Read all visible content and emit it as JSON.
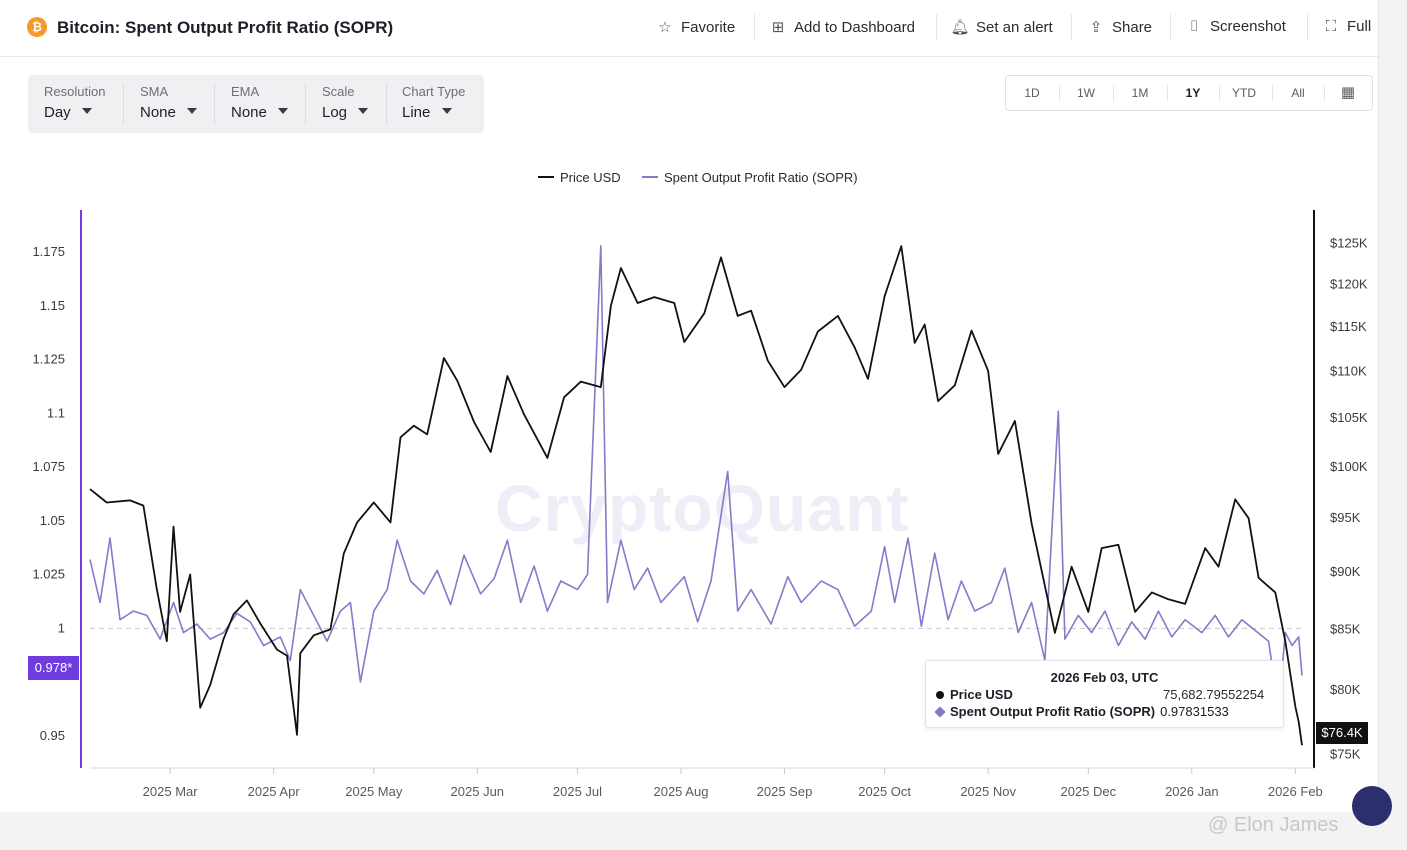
{
  "header": {
    "title": "Bitcoin: Spent Output Profit Ratio (SOPR)",
    "coin_symbol": "₿",
    "actions": [
      {
        "label": "Favorite",
        "icon": "star-icon"
      },
      {
        "label": "Add to Dashboard",
        "icon": "add-dashboard-icon"
      },
      {
        "label": "Set an alert",
        "icon": "bell-icon"
      },
      {
        "label": "Share",
        "icon": "share-icon"
      },
      {
        "label": "Screenshot",
        "icon": "camera-icon"
      },
      {
        "label": "Full",
        "icon": "fullscreen-icon"
      }
    ]
  },
  "controls": [
    {
      "label": "Resolution",
      "value": "Day"
    },
    {
      "label": "SMA",
      "value": "None"
    },
    {
      "label": "EMA",
      "value": "None"
    },
    {
      "label": "Scale",
      "value": "Log"
    },
    {
      "label": "Chart Type",
      "value": "Line"
    }
  ],
  "ranges": [
    "1D",
    "1W",
    "1M",
    "1Y",
    "YTD",
    "All"
  ],
  "active_range": "1Y",
  "colors": {
    "price": "#111111",
    "sopr": "#8a78c8",
    "accent": "#6f3ce0"
  },
  "watermark": "CryptoQuant",
  "credit": "@ Elon James",
  "tooltip": {
    "date": "2026 Feb 03, UTC",
    "rows": [
      {
        "name": "Price USD",
        "value": "75,682.79552254"
      },
      {
        "name": "Spent Output Profit Ratio (SOPR)",
        "value": "0.97831533"
      }
    ]
  },
  "tags": {
    "sopr": "0.978*",
    "price": "$76.4K"
  },
  "chart_data": {
    "type": "line",
    "legend_placement": "top-center",
    "grid": false,
    "reference_line": 1,
    "x_ticks": [
      "2025 Mar",
      "2025 Apr",
      "2025 May",
      "2025 Jun",
      "2025 Jul",
      "2025 Aug",
      "2025 Sep",
      "2025 Oct",
      "2025 Nov",
      "2025 Dec",
      "2026 Jan",
      "2026 Feb"
    ],
    "x_range": [
      "2025-02-05",
      "2026-02-03"
    ],
    "y_left": {
      "ticks": [
        "1.175",
        "1.15",
        "1.125",
        "1.1",
        "1.075",
        "1.05",
        "1.025",
        "1",
        "0.95"
      ],
      "range": [
        0.935,
        1.19
      ]
    },
    "y_right": {
      "scale": "log",
      "ticks": [
        "$125K",
        "$120K",
        "$115K",
        "$110K",
        "$105K",
        "$100K",
        "$95K",
        "$90K",
        "$85K",
        "$80K",
        "$75K"
      ],
      "range": [
        74000,
        128000
      ]
    },
    "series": [
      {
        "name": "Price USD",
        "axis": "right",
        "color": "#111111",
        "points": [
          [
            "2025-02-05",
            97800
          ],
          [
            "2025-02-10",
            96500
          ],
          [
            "2025-02-17",
            96700
          ],
          [
            "2025-02-21",
            96200
          ],
          [
            "2025-02-25",
            88500
          ],
          [
            "2025-02-28",
            84000
          ],
          [
            "2025-03-02",
            94200
          ],
          [
            "2025-03-04",
            86500
          ],
          [
            "2025-03-07",
            89800
          ],
          [
            "2025-03-10",
            78600
          ],
          [
            "2025-03-13",
            80400
          ],
          [
            "2025-03-17",
            84200
          ],
          [
            "2025-03-20",
            86300
          ],
          [
            "2025-03-24",
            87500
          ],
          [
            "2025-03-28",
            85500
          ],
          [
            "2025-04-02",
            83300
          ],
          [
            "2025-04-05",
            82800
          ],
          [
            "2025-04-08",
            76500
          ],
          [
            "2025-04-09",
            83000
          ],
          [
            "2025-04-13",
            84500
          ],
          [
            "2025-04-18",
            85000
          ],
          [
            "2025-04-22",
            91700
          ],
          [
            "2025-04-26",
            94600
          ],
          [
            "2025-05-01",
            96500
          ],
          [
            "2025-05-06",
            94600
          ],
          [
            "2025-05-09",
            103000
          ],
          [
            "2025-05-13",
            104200
          ],
          [
            "2025-05-17",
            103300
          ],
          [
            "2025-05-22",
            111500
          ],
          [
            "2025-05-26",
            109000
          ],
          [
            "2025-05-31",
            104600
          ],
          [
            "2025-06-05",
            101500
          ],
          [
            "2025-06-10",
            109500
          ],
          [
            "2025-06-15",
            105400
          ],
          [
            "2025-06-22",
            100900
          ],
          [
            "2025-06-27",
            107200
          ],
          [
            "2025-07-02",
            108900
          ],
          [
            "2025-07-08",
            108300
          ],
          [
            "2025-07-11",
            117500
          ],
          [
            "2025-07-14",
            122000
          ],
          [
            "2025-07-19",
            117800
          ],
          [
            "2025-07-24",
            118500
          ],
          [
            "2025-07-30",
            117800
          ],
          [
            "2025-08-02",
            113300
          ],
          [
            "2025-08-08",
            116600
          ],
          [
            "2025-08-13",
            123300
          ],
          [
            "2025-08-18",
            116300
          ],
          [
            "2025-08-22",
            116900
          ],
          [
            "2025-08-27",
            111200
          ],
          [
            "2025-09-01",
            108300
          ],
          [
            "2025-09-06",
            110200
          ],
          [
            "2025-09-11",
            114500
          ],
          [
            "2025-09-17",
            116300
          ],
          [
            "2025-09-22",
            112700
          ],
          [
            "2025-09-26",
            109200
          ],
          [
            "2025-10-01",
            118600
          ],
          [
            "2025-10-06",
            124700
          ],
          [
            "2025-10-10",
            113200
          ],
          [
            "2025-10-13",
            115300
          ],
          [
            "2025-10-17",
            106800
          ],
          [
            "2025-10-22",
            108500
          ],
          [
            "2025-10-27",
            114600
          ],
          [
            "2025-11-01",
            110100
          ],
          [
            "2025-11-04",
            101300
          ],
          [
            "2025-11-09",
            104700
          ],
          [
            "2025-11-14",
            94500
          ],
          [
            "2025-11-21",
            84700
          ],
          [
            "2025-11-26",
            90500
          ],
          [
            "2025-12-01",
            86500
          ],
          [
            "2025-12-05",
            92200
          ],
          [
            "2025-12-10",
            92500
          ],
          [
            "2025-12-15",
            86500
          ],
          [
            "2025-12-20",
            88200
          ],
          [
            "2025-12-25",
            87600
          ],
          [
            "2025-12-30",
            87200
          ],
          [
            "2026-01-05",
            92200
          ],
          [
            "2026-01-09",
            90500
          ],
          [
            "2026-01-14",
            96800
          ],
          [
            "2026-01-18",
            95000
          ],
          [
            "2026-01-21",
            89500
          ],
          [
            "2026-01-26",
            88200
          ],
          [
            "2026-01-29",
            84000
          ],
          [
            "2026-02-01",
            78700
          ],
          [
            "2026-02-02",
            77500
          ],
          [
            "2026-02-03",
            75700
          ]
        ]
      },
      {
        "name": "Spent Output Profit Ratio (SOPR)",
        "axis": "left",
        "color": "#8a78c8",
        "points": [
          [
            "2025-02-05",
            1.032
          ],
          [
            "2025-02-08",
            1.012
          ],
          [
            "2025-02-11",
            1.042
          ],
          [
            "2025-02-14",
            1.004
          ],
          [
            "2025-02-18",
            1.008
          ],
          [
            "2025-02-22",
            1.006
          ],
          [
            "2025-02-26",
            0.995
          ],
          [
            "2025-03-02",
            1.012
          ],
          [
            "2025-03-05",
            0.998
          ],
          [
            "2025-03-09",
            1.002
          ],
          [
            "2025-03-13",
            0.995
          ],
          [
            "2025-03-17",
            0.998
          ],
          [
            "2025-03-21",
            1.007
          ],
          [
            "2025-03-25",
            1.003
          ],
          [
            "2025-03-29",
            0.992
          ],
          [
            "2025-04-03",
            0.996
          ],
          [
            "2025-04-06",
            0.985
          ],
          [
            "2025-04-09",
            1.018
          ],
          [
            "2025-04-13",
            1.006
          ],
          [
            "2025-04-17",
            0.994
          ],
          [
            "2025-04-21",
            1.008
          ],
          [
            "2025-04-24",
            1.012
          ],
          [
            "2025-04-27",
            0.975
          ],
          [
            "2025-05-01",
            1.008
          ],
          [
            "2025-05-05",
            1.018
          ],
          [
            "2025-05-08",
            1.041
          ],
          [
            "2025-05-12",
            1.022
          ],
          [
            "2025-05-16",
            1.016
          ],
          [
            "2025-05-20",
            1.027
          ],
          [
            "2025-05-24",
            1.011
          ],
          [
            "2025-05-28",
            1.034
          ],
          [
            "2025-06-02",
            1.016
          ],
          [
            "2025-06-06",
            1.023
          ],
          [
            "2025-06-10",
            1.041
          ],
          [
            "2025-06-14",
            1.012
          ],
          [
            "2025-06-18",
            1.029
          ],
          [
            "2025-06-22",
            1.008
          ],
          [
            "2025-06-26",
            1.022
          ],
          [
            "2025-07-01",
            1.018
          ],
          [
            "2025-07-04",
            1.025
          ],
          [
            "2025-07-08",
            1.178
          ],
          [
            "2025-07-10",
            1.012
          ],
          [
            "2025-07-14",
            1.041
          ],
          [
            "2025-07-18",
            1.018
          ],
          [
            "2025-07-22",
            1.028
          ],
          [
            "2025-07-26",
            1.012
          ],
          [
            "2025-08-02",
            1.024
          ],
          [
            "2025-08-06",
            1.003
          ],
          [
            "2025-08-10",
            1.022
          ],
          [
            "2025-08-15",
            1.073
          ],
          [
            "2025-08-18",
            1.008
          ],
          [
            "2025-08-22",
            1.018
          ],
          [
            "2025-08-28",
            1.002
          ],
          [
            "2025-09-02",
            1.024
          ],
          [
            "2025-09-06",
            1.012
          ],
          [
            "2025-09-12",
            1.022
          ],
          [
            "2025-09-17",
            1.018
          ],
          [
            "2025-09-22",
            1.001
          ],
          [
            "2025-09-27",
            1.008
          ],
          [
            "2025-10-01",
            1.038
          ],
          [
            "2025-10-04",
            1.012
          ],
          [
            "2025-10-08",
            1.042
          ],
          [
            "2025-10-12",
            1.001
          ],
          [
            "2025-10-16",
            1.035
          ],
          [
            "2025-10-20",
            1.004
          ],
          [
            "2025-10-24",
            1.022
          ],
          [
            "2025-10-28",
            1.008
          ],
          [
            "2025-11-02",
            1.012
          ],
          [
            "2025-11-06",
            1.028
          ],
          [
            "2025-11-10",
            0.998
          ],
          [
            "2025-11-14",
            1.012
          ],
          [
            "2025-11-18",
            0.985
          ],
          [
            "2025-11-22",
            1.101
          ],
          [
            "2025-11-24",
            0.995
          ],
          [
            "2025-11-28",
            1.006
          ],
          [
            "2025-12-02",
            0.998
          ],
          [
            "2025-12-06",
            1.008
          ],
          [
            "2025-12-10",
            0.992
          ],
          [
            "2025-12-14",
            1.003
          ],
          [
            "2025-12-18",
            0.995
          ],
          [
            "2025-12-22",
            1.008
          ],
          [
            "2025-12-26",
            0.996
          ],
          [
            "2025-12-30",
            1.004
          ],
          [
            "2026-01-04",
            0.998
          ],
          [
            "2026-01-08",
            1.006
          ],
          [
            "2026-01-12",
            0.996
          ],
          [
            "2026-01-16",
            1.004
          ],
          [
            "2026-01-20",
            0.999
          ],
          [
            "2026-01-24",
            0.994
          ],
          [
            "2026-01-27",
            0.962
          ],
          [
            "2026-01-29",
            0.998
          ],
          [
            "2026-01-31",
            0.992
          ],
          [
            "2026-02-02",
            0.996
          ],
          [
            "2026-02-03",
            0.978
          ]
        ]
      }
    ]
  }
}
